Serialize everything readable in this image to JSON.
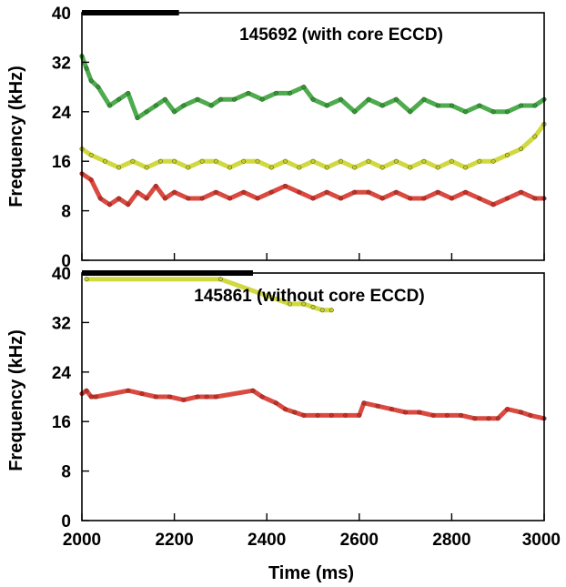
{
  "chart_data": [
    {
      "type": "scatter",
      "title": "145692 (with core ECCD)",
      "xlabel": "",
      "ylabel": "Frequency (kHz)",
      "xlim": [
        2000,
        3000
      ],
      "ylim": [
        0,
        40
      ],
      "x_ticks": [],
      "y_ticks": [
        "0",
        "8",
        "16",
        "24",
        "32",
        "40"
      ],
      "grid": false,
      "marked_interval_ms": [
        2000,
        2210
      ],
      "series": [
        {
          "color": "#2f9c2f",
          "points": [
            [
              2000,
              33
            ],
            [
              2010,
              31
            ],
            [
              2020,
              29
            ],
            [
              2035,
              28
            ],
            [
              2060,
              25
            ],
            [
              2080,
              26
            ],
            [
              2100,
              27
            ],
            [
              2120,
              23
            ],
            [
              2140,
              24
            ],
            [
              2160,
              25
            ],
            [
              2180,
              26
            ],
            [
              2200,
              24
            ],
            [
              2220,
              25
            ],
            [
              2250,
              26
            ],
            [
              2280,
              25
            ],
            [
              2300,
              26
            ],
            [
              2330,
              26
            ],
            [
              2360,
              27
            ],
            [
              2390,
              26
            ],
            [
              2420,
              27
            ],
            [
              2450,
              27
            ],
            [
              2480,
              28
            ],
            [
              2500,
              26
            ],
            [
              2530,
              25
            ],
            [
              2560,
              26
            ],
            [
              2590,
              24
            ],
            [
              2620,
              26
            ],
            [
              2650,
              25
            ],
            [
              2680,
              26
            ],
            [
              2710,
              24
            ],
            [
              2740,
              26
            ],
            [
              2770,
              25
            ],
            [
              2800,
              25
            ],
            [
              2830,
              24
            ],
            [
              2860,
              25
            ],
            [
              2890,
              24
            ],
            [
              2920,
              24
            ],
            [
              2950,
              25
            ],
            [
              2980,
              25
            ],
            [
              3000,
              26
            ]
          ]
        },
        {
          "color": "#c8d21e",
          "points": [
            [
              2000,
              18
            ],
            [
              2020,
              17
            ],
            [
              2050,
              16
            ],
            [
              2080,
              15
            ],
            [
              2110,
              16
            ],
            [
              2140,
              15
            ],
            [
              2170,
              16
            ],
            [
              2200,
              16
            ],
            [
              2230,
              15
            ],
            [
              2260,
              16
            ],
            [
              2290,
              16
            ],
            [
              2320,
              15
            ],
            [
              2350,
              16
            ],
            [
              2380,
              16
            ],
            [
              2410,
              15
            ],
            [
              2440,
              16
            ],
            [
              2470,
              15
            ],
            [
              2500,
              16
            ],
            [
              2530,
              15
            ],
            [
              2560,
              16
            ],
            [
              2590,
              15
            ],
            [
              2620,
              16
            ],
            [
              2650,
              15
            ],
            [
              2680,
              16
            ],
            [
              2710,
              15
            ],
            [
              2740,
              16
            ],
            [
              2770,
              15
            ],
            [
              2800,
              16
            ],
            [
              2830,
              15
            ],
            [
              2860,
              16
            ],
            [
              2890,
              16
            ],
            [
              2920,
              17
            ],
            [
              2950,
              18
            ],
            [
              2980,
              20
            ],
            [
              3000,
              22
            ]
          ]
        },
        {
          "color": "#d42a1e",
          "points": [
            [
              2000,
              14
            ],
            [
              2020,
              13
            ],
            [
              2040,
              10
            ],
            [
              2060,
              9
            ],
            [
              2080,
              10
            ],
            [
              2100,
              9
            ],
            [
              2120,
              11
            ],
            [
              2140,
              10
            ],
            [
              2160,
              12
            ],
            [
              2180,
              10
            ],
            [
              2200,
              11
            ],
            [
              2230,
              10
            ],
            [
              2260,
              10
            ],
            [
              2290,
              11
            ],
            [
              2320,
              10
            ],
            [
              2350,
              11
            ],
            [
              2380,
              10
            ],
            [
              2410,
              11
            ],
            [
              2440,
              12
            ],
            [
              2470,
              11
            ],
            [
              2500,
              10
            ],
            [
              2530,
              11
            ],
            [
              2560,
              10
            ],
            [
              2590,
              11
            ],
            [
              2620,
              11
            ],
            [
              2650,
              10
            ],
            [
              2680,
              11
            ],
            [
              2710,
              10
            ],
            [
              2740,
              10
            ],
            [
              2770,
              11
            ],
            [
              2800,
              10
            ],
            [
              2830,
              11
            ],
            [
              2860,
              10
            ],
            [
              2890,
              9
            ],
            [
              2920,
              10
            ],
            [
              2950,
              11
            ],
            [
              2980,
              10
            ],
            [
              3000,
              10
            ]
          ]
        }
      ]
    },
    {
      "type": "scatter",
      "title": "145861 (without core ECCD)",
      "xlabel": "Time (ms)",
      "ylabel": "Frequency (kHz)",
      "xlim": [
        2000,
        3000
      ],
      "ylim": [
        0,
        40
      ],
      "x_ticks": [
        "2000",
        "2200",
        "2400",
        "2600",
        "2800",
        "3000"
      ],
      "y_ticks": [
        "0",
        "8",
        "16",
        "24",
        "32",
        "40"
      ],
      "grid": false,
      "marked_interval_ms": [
        2000,
        2370
      ],
      "series": [
        {
          "color": "#d42a1e",
          "points": [
            [
              2000,
              20.5
            ],
            [
              2010,
              21
            ],
            [
              2020,
              20
            ],
            [
              2030,
              20
            ],
            [
              2100,
              21
            ],
            [
              2130,
              20.5
            ],
            [
              2160,
              20
            ],
            [
              2190,
              20
            ],
            [
              2220,
              19.5
            ],
            [
              2250,
              20
            ],
            [
              2270,
              20
            ],
            [
              2290,
              20
            ],
            [
              2370,
              21
            ],
            [
              2390,
              20
            ],
            [
              2420,
              19
            ],
            [
              2440,
              18
            ],
            [
              2460,
              17.5
            ],
            [
              2480,
              17
            ],
            [
              2510,
              17
            ],
            [
              2540,
              17
            ],
            [
              2570,
              17
            ],
            [
              2600,
              17
            ],
            [
              2610,
              19
            ],
            [
              2640,
              18.5
            ],
            [
              2670,
              18
            ],
            [
              2700,
              17.5
            ],
            [
              2730,
              17.5
            ],
            [
              2760,
              17
            ],
            [
              2790,
              17
            ],
            [
              2820,
              17
            ],
            [
              2850,
              16.5
            ],
            [
              2880,
              16.5
            ],
            [
              2900,
              16.5
            ],
            [
              2920,
              18
            ],
            [
              2950,
              17.5
            ],
            [
              2970,
              17
            ],
            [
              3000,
              16.5
            ]
          ]
        },
        {
          "color": "#c8d21e",
          "points": [
            [
              2010,
              39
            ],
            [
              2300,
              39
            ],
            [
              2450,
              35
            ],
            [
              2480,
              35
            ],
            [
              2500,
              34.5
            ],
            [
              2520,
              34
            ],
            [
              2540,
              34
            ]
          ]
        }
      ]
    }
  ]
}
